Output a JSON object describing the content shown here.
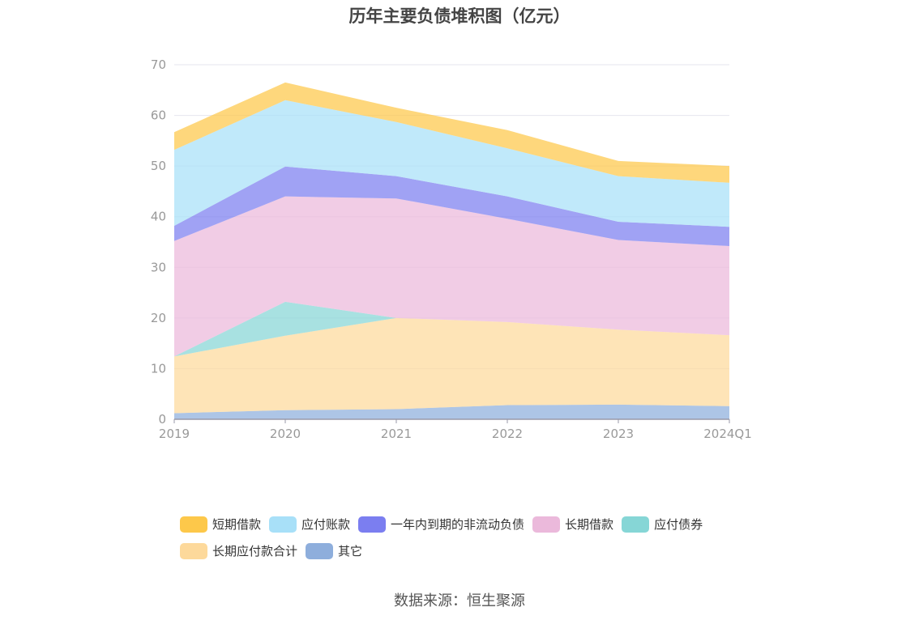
{
  "title": "历年主要负债堆积图（亿元）",
  "source": "数据来源：恒生聚源",
  "chart_data": {
    "type": "area",
    "stacked": true,
    "title": "历年主要负债堆积图（亿元）",
    "categories": [
      "2019",
      "2020",
      "2021",
      "2022",
      "2023",
      "2024Q1"
    ],
    "y_ticks": [
      "0",
      "10",
      "20",
      "30",
      "40",
      "50",
      "60",
      "70"
    ],
    "ylim": [
      0,
      70
    ],
    "grid": true,
    "legend_position": "bottom",
    "series": [
      {
        "name": "其它",
        "color": "#8eaedc",
        "values": [
          1.2,
          1.8,
          2.0,
          2.8,
          2.9,
          2.6
        ]
      },
      {
        "name": "长期应付款合计",
        "color": "#fdd99b",
        "values": [
          11.2,
          14.7,
          18.0,
          16.4,
          14.8,
          14.0
        ]
      },
      {
        "name": "应付债券",
        "color": "#86d6d6",
        "values": [
          0.0,
          6.7,
          0.0,
          0.0,
          0.0,
          0.0
        ]
      },
      {
        "name": "长期借款",
        "color": "#ebb9db",
        "values": [
          22.8,
          20.8,
          23.6,
          20.4,
          17.7,
          17.6
        ]
      },
      {
        "name": "一年内到期的非流动负债",
        "color": "#7b7ef0",
        "values": [
          3.0,
          5.9,
          4.4,
          4.4,
          3.6,
          3.8
        ]
      },
      {
        "name": "应付账款",
        "color": "#a8e0f8",
        "values": [
          15.0,
          13.1,
          10.7,
          9.5,
          9.0,
          8.7
        ]
      },
      {
        "name": "短期借款",
        "color": "#fdc84a",
        "values": [
          3.5,
          3.5,
          2.8,
          3.6,
          3.0,
          3.3
        ]
      }
    ]
  },
  "legend": {
    "row1": [
      {
        "label": "短期借款",
        "color": "#fdc84a"
      },
      {
        "label": "应付账款",
        "color": "#a8e0f8"
      },
      {
        "label": "一年内到期的非流动负债",
        "color": "#7b7ef0"
      },
      {
        "label": "长期借款",
        "color": "#ebb9db"
      },
      {
        "label": "应付债券",
        "color": "#86d6d6"
      }
    ],
    "row2": [
      {
        "label": "长期应付款合计",
        "color": "#fdd99b"
      },
      {
        "label": "其它",
        "color": "#8eaedc"
      }
    ]
  }
}
